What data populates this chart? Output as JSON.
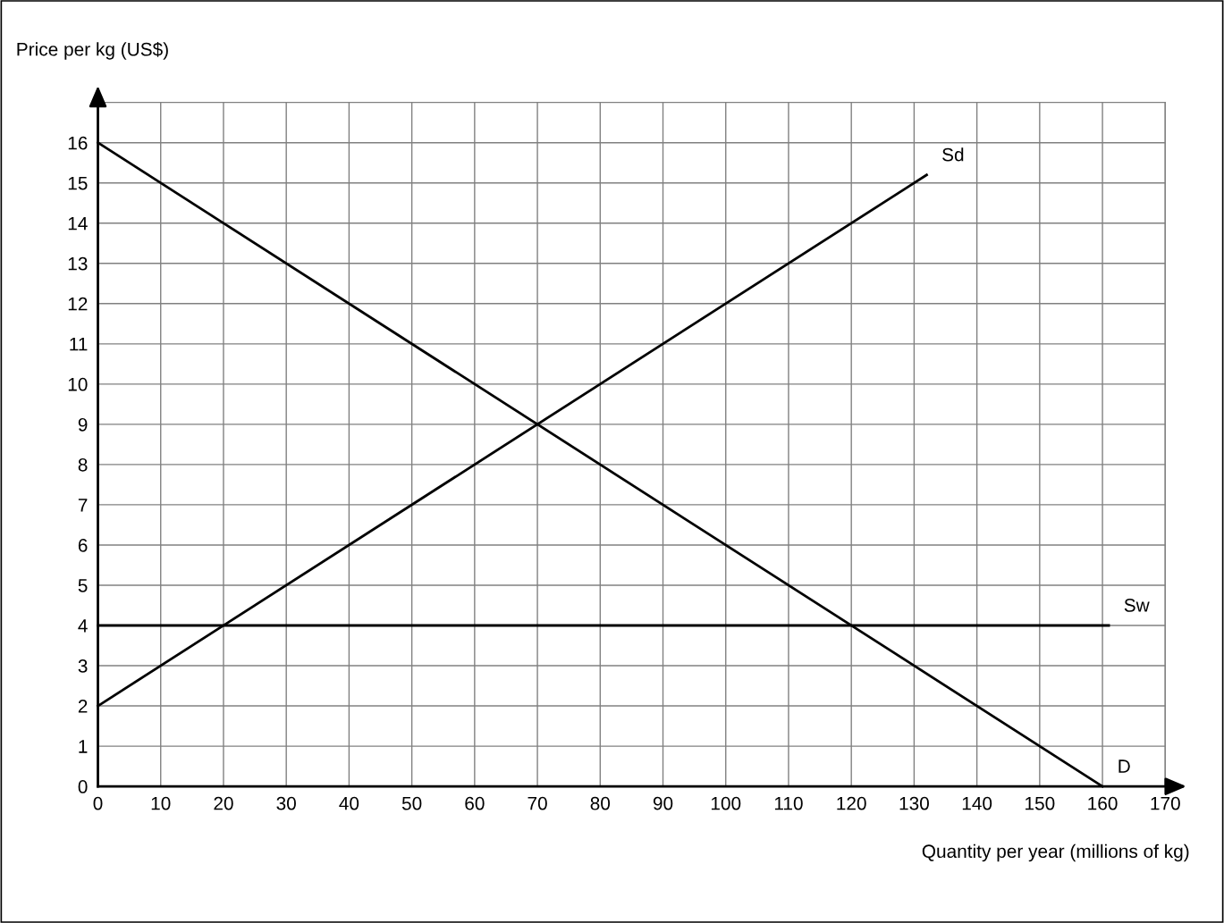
{
  "chart_data": {
    "type": "line",
    "xlabel": "Quantity per year (millions of kg)",
    "ylabel": "Price per kg (US$)",
    "series": [
      {
        "name": "Sd",
        "color": "#000000",
        "x": [
          0,
          132
        ],
        "values": [
          2,
          15.2
        ]
      },
      {
        "name": "Sw",
        "color": "#000000",
        "x": [
          0,
          161
        ],
        "values": [
          4,
          4
        ]
      },
      {
        "name": "D",
        "color": "#000000",
        "x": [
          0,
          160
        ],
        "values": [
          16,
          0
        ]
      }
    ],
    "xlim": [
      0,
      170
    ],
    "ylim": [
      0,
      17
    ],
    "xticks": [
      0,
      10,
      20,
      30,
      40,
      50,
      60,
      70,
      80,
      90,
      100,
      110,
      120,
      130,
      140,
      150,
      160,
      170
    ],
    "yticks": [
      0,
      1,
      2,
      3,
      4,
      5,
      6,
      7,
      8,
      9,
      10,
      11,
      12,
      13,
      14,
      15,
      16
    ],
    "grid": true,
    "legend": false,
    "marker": "none",
    "line_style": "solid"
  }
}
